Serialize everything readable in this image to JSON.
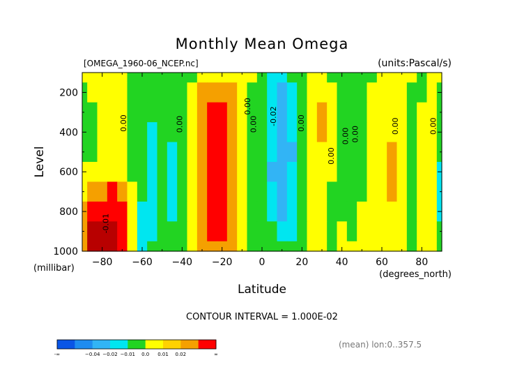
{
  "chart_data": {
    "type": "heatmap",
    "title": "Monthly Mean Omega",
    "file_label": "[OMEGA_1960-06_NCEP.nc]",
    "units_label": "(units:Pascal/s)",
    "xlabel": "Latitude",
    "x_unit_label": "(degrees_north)",
    "ylabel": "Level",
    "y_unit_label": "(millibar)",
    "xlim": [
      -90,
      90
    ],
    "ylim": [
      1000,
      100
    ],
    "x_ticks": [
      -80,
      -60,
      -40,
      -20,
      0,
      20,
      40,
      60,
      80
    ],
    "y_ticks": [
      200,
      400,
      600,
      800,
      1000
    ],
    "contour_interval_text": "CONTOUR INTERVAL = 1.000E-02",
    "footer_note": "(mean) lon:0..357.5",
    "colorbar": {
      "colors": [
        "#0a55e6",
        "#1e8cf0",
        "#32b4f5",
        "#00e6f0",
        "#22d422",
        "#ffff00",
        "#ffd200",
        "#f5a000",
        "#ff0000"
      ],
      "labels": [
        "-∞",
        "−0.04",
        "−0.02",
        "−0.01",
        "0.0",
        "0.01",
        "0.02",
        "∞"
      ]
    },
    "level_colors": {
      "-3": "#1e8cf0",
      "-2": "#32b4f5",
      "-1": "#00e6f0",
      "0": "#22d422",
      "1": "#ffff00",
      "2": "#f5a000",
      "3": "#ff0000",
      "4": "#b80000"
    },
    "levels": [
      100,
      200,
      300,
      400,
      500,
      600,
      700,
      800,
      900,
      1000
    ],
    "latitudes": [
      -90,
      -85,
      -80,
      -75,
      -70,
      -65,
      -60,
      -55,
      -50,
      -45,
      -40,
      -35,
      -30,
      -25,
      -20,
      -15,
      -10,
      -5,
      0,
      5,
      10,
      15,
      20,
      25,
      30,
      35,
      40,
      45,
      50,
      55,
      60,
      65,
      70,
      75,
      80,
      85,
      90
    ],
    "values": [
      [
        1,
        1,
        1,
        1,
        1,
        0,
        0,
        0,
        0,
        0,
        0,
        0,
        1,
        1,
        1,
        1,
        1,
        1,
        0,
        -1,
        -1,
        0,
        0,
        1,
        1,
        0,
        0,
        0,
        0,
        0,
        1,
        1,
        1,
        1,
        0,
        1,
        1
      ],
      [
        0,
        1,
        1,
        1,
        1,
        0,
        0,
        0,
        0,
        0,
        0,
        1,
        2,
        2,
        2,
        2,
        1,
        0,
        0,
        -1,
        -2,
        -1,
        0,
        1,
        1,
        1,
        0,
        0,
        0,
        1,
        1,
        1,
        1,
        0,
        0,
        1,
        0
      ],
      [
        0,
        0,
        1,
        1,
        1,
        0,
        0,
        0,
        0,
        0,
        0,
        1,
        2,
        3,
        3,
        2,
        1,
        0,
        0,
        -1,
        -2,
        -1,
        0,
        1,
        2,
        1,
        0,
        0,
        0,
        1,
        1,
        1,
        1,
        0,
        1,
        1,
        0
      ],
      [
        0,
        0,
        1,
        1,
        1,
        0,
        0,
        -1,
        0,
        0,
        0,
        1,
        2,
        3,
        3,
        2,
        1,
        0,
        0,
        -1,
        -2,
        -1,
        0,
        1,
        2,
        1,
        0,
        0,
        0,
        1,
        1,
        1,
        1,
        0,
        1,
        1,
        0
      ],
      [
        0,
        0,
        1,
        1,
        1,
        0,
        0,
        -1,
        0,
        -1,
        0,
        1,
        2,
        3,
        3,
        2,
        1,
        0,
        0,
        -1,
        -2,
        -2,
        0,
        1,
        1,
        1,
        0,
        0,
        0,
        1,
        1,
        2,
        1,
        0,
        1,
        1,
        0
      ],
      [
        1,
        1,
        1,
        1,
        1,
        0,
        0,
        -1,
        0,
        -1,
        0,
        1,
        2,
        3,
        3,
        2,
        1,
        0,
        0,
        -2,
        -2,
        -1,
        0,
        1,
        1,
        1,
        0,
        0,
        0,
        1,
        1,
        2,
        1,
        0,
        1,
        1,
        -1
      ],
      [
        1,
        2,
        2,
        3,
        2,
        1,
        0,
        -1,
        0,
        -1,
        0,
        1,
        2,
        3,
        3,
        2,
        1,
        0,
        0,
        -1,
        -2,
        -1,
        0,
        1,
        1,
        0,
        0,
        0,
        0,
        1,
        1,
        2,
        1,
        0,
        1,
        1,
        -1
      ],
      [
        2,
        3,
        3,
        3,
        3,
        1,
        -1,
        -1,
        0,
        -1,
        0,
        1,
        2,
        3,
        3,
        2,
        1,
        0,
        0,
        -1,
        -2,
        -1,
        0,
        1,
        1,
        0,
        0,
        0,
        1,
        1,
        1,
        1,
        1,
        0,
        1,
        1,
        -1
      ],
      [
        2,
        4,
        4,
        4,
        3,
        1,
        -1,
        -1,
        0,
        0,
        0,
        1,
        2,
        3,
        3,
        2,
        1,
        0,
        0,
        0,
        -1,
        -1,
        0,
        1,
        1,
        0,
        1,
        0,
        1,
        1,
        1,
        1,
        1,
        0,
        1,
        1,
        0
      ],
      [
        2,
        4,
        4,
        4,
        3,
        1,
        -1,
        0,
        0,
        0,
        0,
        1,
        2,
        2,
        2,
        2,
        1,
        0,
        0,
        0,
        0,
        0,
        0,
        1,
        1,
        0,
        1,
        1,
        1,
        1,
        1,
        1,
        1,
        0,
        1,
        1,
        0
      ]
    ],
    "contour_labels": [
      {
        "text": "0.00",
        "lat": -68,
        "lev": 355
      },
      {
        "text": "0.00",
        "lat": -40,
        "lev": 360
      },
      {
        "text": "0.00",
        "lat": -6,
        "lev": 270
      },
      {
        "text": "0.00",
        "lat": -3,
        "lev": 360
      },
      {
        "text": "-0.02",
        "lat": 7,
        "lev": 320
      },
      {
        "text": "0.00",
        "lat": 21,
        "lev": 355
      },
      {
        "text": "0.00",
        "lat": 43,
        "lev": 420
      },
      {
        "text": "0.00",
        "lat": 48,
        "lev": 410
      },
      {
        "text": "0.00",
        "lat": 36,
        "lev": 520
      },
      {
        "text": "0.00",
        "lat": 68,
        "lev": 370
      },
      {
        "text": "0.00",
        "lat": 87,
        "lev": 370
      },
      {
        "text": "-0.01",
        "lat": -77,
        "lev": 860
      }
    ]
  }
}
